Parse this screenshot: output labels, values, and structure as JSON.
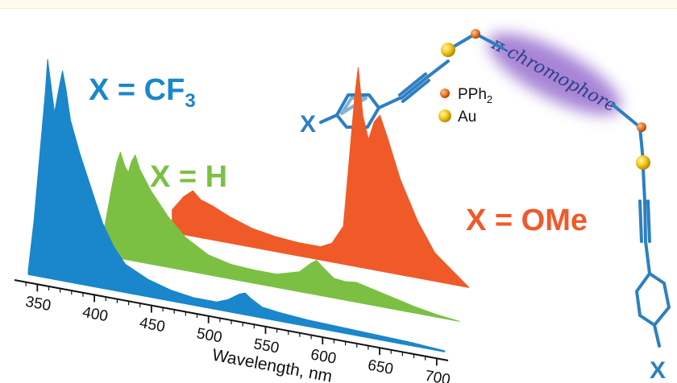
{
  "chart_data": {
    "type": "area",
    "xlabel": "Wavelength, nm",
    "ylabel": "",
    "title": "",
    "xlim": [
      330,
      710
    ],
    "x_ticks": [
      350,
      400,
      450,
      500,
      550,
      600,
      650,
      700
    ],
    "grid": false,
    "legend": "none",
    "series": [
      {
        "name": "X = CF3",
        "color": "#1a86cc",
        "points": [
          [
            335,
            0.02
          ],
          [
            340,
            0.25
          ],
          [
            345,
            0.55
          ],
          [
            350,
            0.85
          ],
          [
            352,
            1.0
          ],
          [
            355,
            0.88
          ],
          [
            358,
            0.76
          ],
          [
            362,
            0.88
          ],
          [
            365,
            0.96
          ],
          [
            368,
            0.88
          ],
          [
            372,
            0.74
          ],
          [
            380,
            0.6
          ],
          [
            390,
            0.45
          ],
          [
            400,
            0.3
          ],
          [
            410,
            0.2
          ],
          [
            420,
            0.13
          ],
          [
            440,
            0.08
          ],
          [
            460,
            0.05
          ],
          [
            480,
            0.035
          ],
          [
            500,
            0.035
          ],
          [
            510,
            0.055
          ],
          [
            520,
            0.09
          ],
          [
            525,
            0.1
          ],
          [
            530,
            0.08
          ],
          [
            540,
            0.05
          ],
          [
            555,
            0.04
          ],
          [
            580,
            0.03
          ],
          [
            610,
            0.025
          ],
          [
            640,
            0.02
          ],
          [
            670,
            0.015
          ],
          [
            700,
            0.005
          ]
        ]
      },
      {
        "name": "X = H",
        "color": "#7cc043",
        "points": [
          [
            385,
            0.05
          ],
          [
            390,
            0.25
          ],
          [
            395,
            0.5
          ],
          [
            400,
            0.72
          ],
          [
            403,
            0.8
          ],
          [
            407,
            0.7
          ],
          [
            410,
            0.66
          ],
          [
            413,
            0.75
          ],
          [
            416,
            0.8
          ],
          [
            420,
            0.7
          ],
          [
            430,
            0.55
          ],
          [
            445,
            0.38
          ],
          [
            460,
            0.25
          ],
          [
            480,
            0.15
          ],
          [
            500,
            0.11
          ],
          [
            520,
            0.1
          ],
          [
            540,
            0.1
          ],
          [
            560,
            0.15
          ],
          [
            570,
            0.23
          ],
          [
            575,
            0.26
          ],
          [
            580,
            0.22
          ],
          [
            590,
            0.15
          ],
          [
            600,
            0.14
          ],
          [
            610,
            0.15
          ],
          [
            620,
            0.13
          ],
          [
            640,
            0.09
          ],
          [
            660,
            0.05
          ],
          [
            680,
            0.02
          ],
          [
            700,
            0.0
          ]
        ]
      },
      {
        "name": "X = OMe",
        "color": "#f05a28",
        "points": [
          [
            440,
            0.12
          ],
          [
            450,
            0.2
          ],
          [
            458,
            0.24
          ],
          [
            465,
            0.2
          ],
          [
            475,
            0.18
          ],
          [
            490,
            0.14
          ],
          [
            510,
            0.1
          ],
          [
            530,
            0.08
          ],
          [
            550,
            0.07
          ],
          [
            570,
            0.07
          ],
          [
            580,
            0.1
          ],
          [
            590,
            0.2
          ],
          [
            595,
            0.55
          ],
          [
            600,
            0.9
          ],
          [
            603,
            1.05
          ],
          [
            607,
            0.8
          ],
          [
            612,
            0.68
          ],
          [
            617,
            0.78
          ],
          [
            622,
            0.82
          ],
          [
            628,
            0.72
          ],
          [
            640,
            0.5
          ],
          [
            655,
            0.3
          ],
          [
            670,
            0.15
          ],
          [
            690,
            0.05
          ],
          [
            700,
            0.0
          ]
        ]
      }
    ],
    "labels": [
      {
        "base": "X = CF",
        "sub": "3",
        "color": "#1a86cc"
      },
      {
        "base": "X = H",
        "sub": "",
        "color": "#7cc043"
      },
      {
        "base": "X = OMe",
        "sub": "",
        "color": "#f05a28"
      }
    ]
  },
  "molecule": {
    "x_label": "X",
    "x_label_bottom": "X",
    "chromophore_text": "π-chromophore",
    "legend": [
      {
        "label": "PPh",
        "sub": "2",
        "color": "#e8782a"
      },
      {
        "label": "Au",
        "sub": "",
        "color": "#f2c81a"
      }
    ]
  }
}
